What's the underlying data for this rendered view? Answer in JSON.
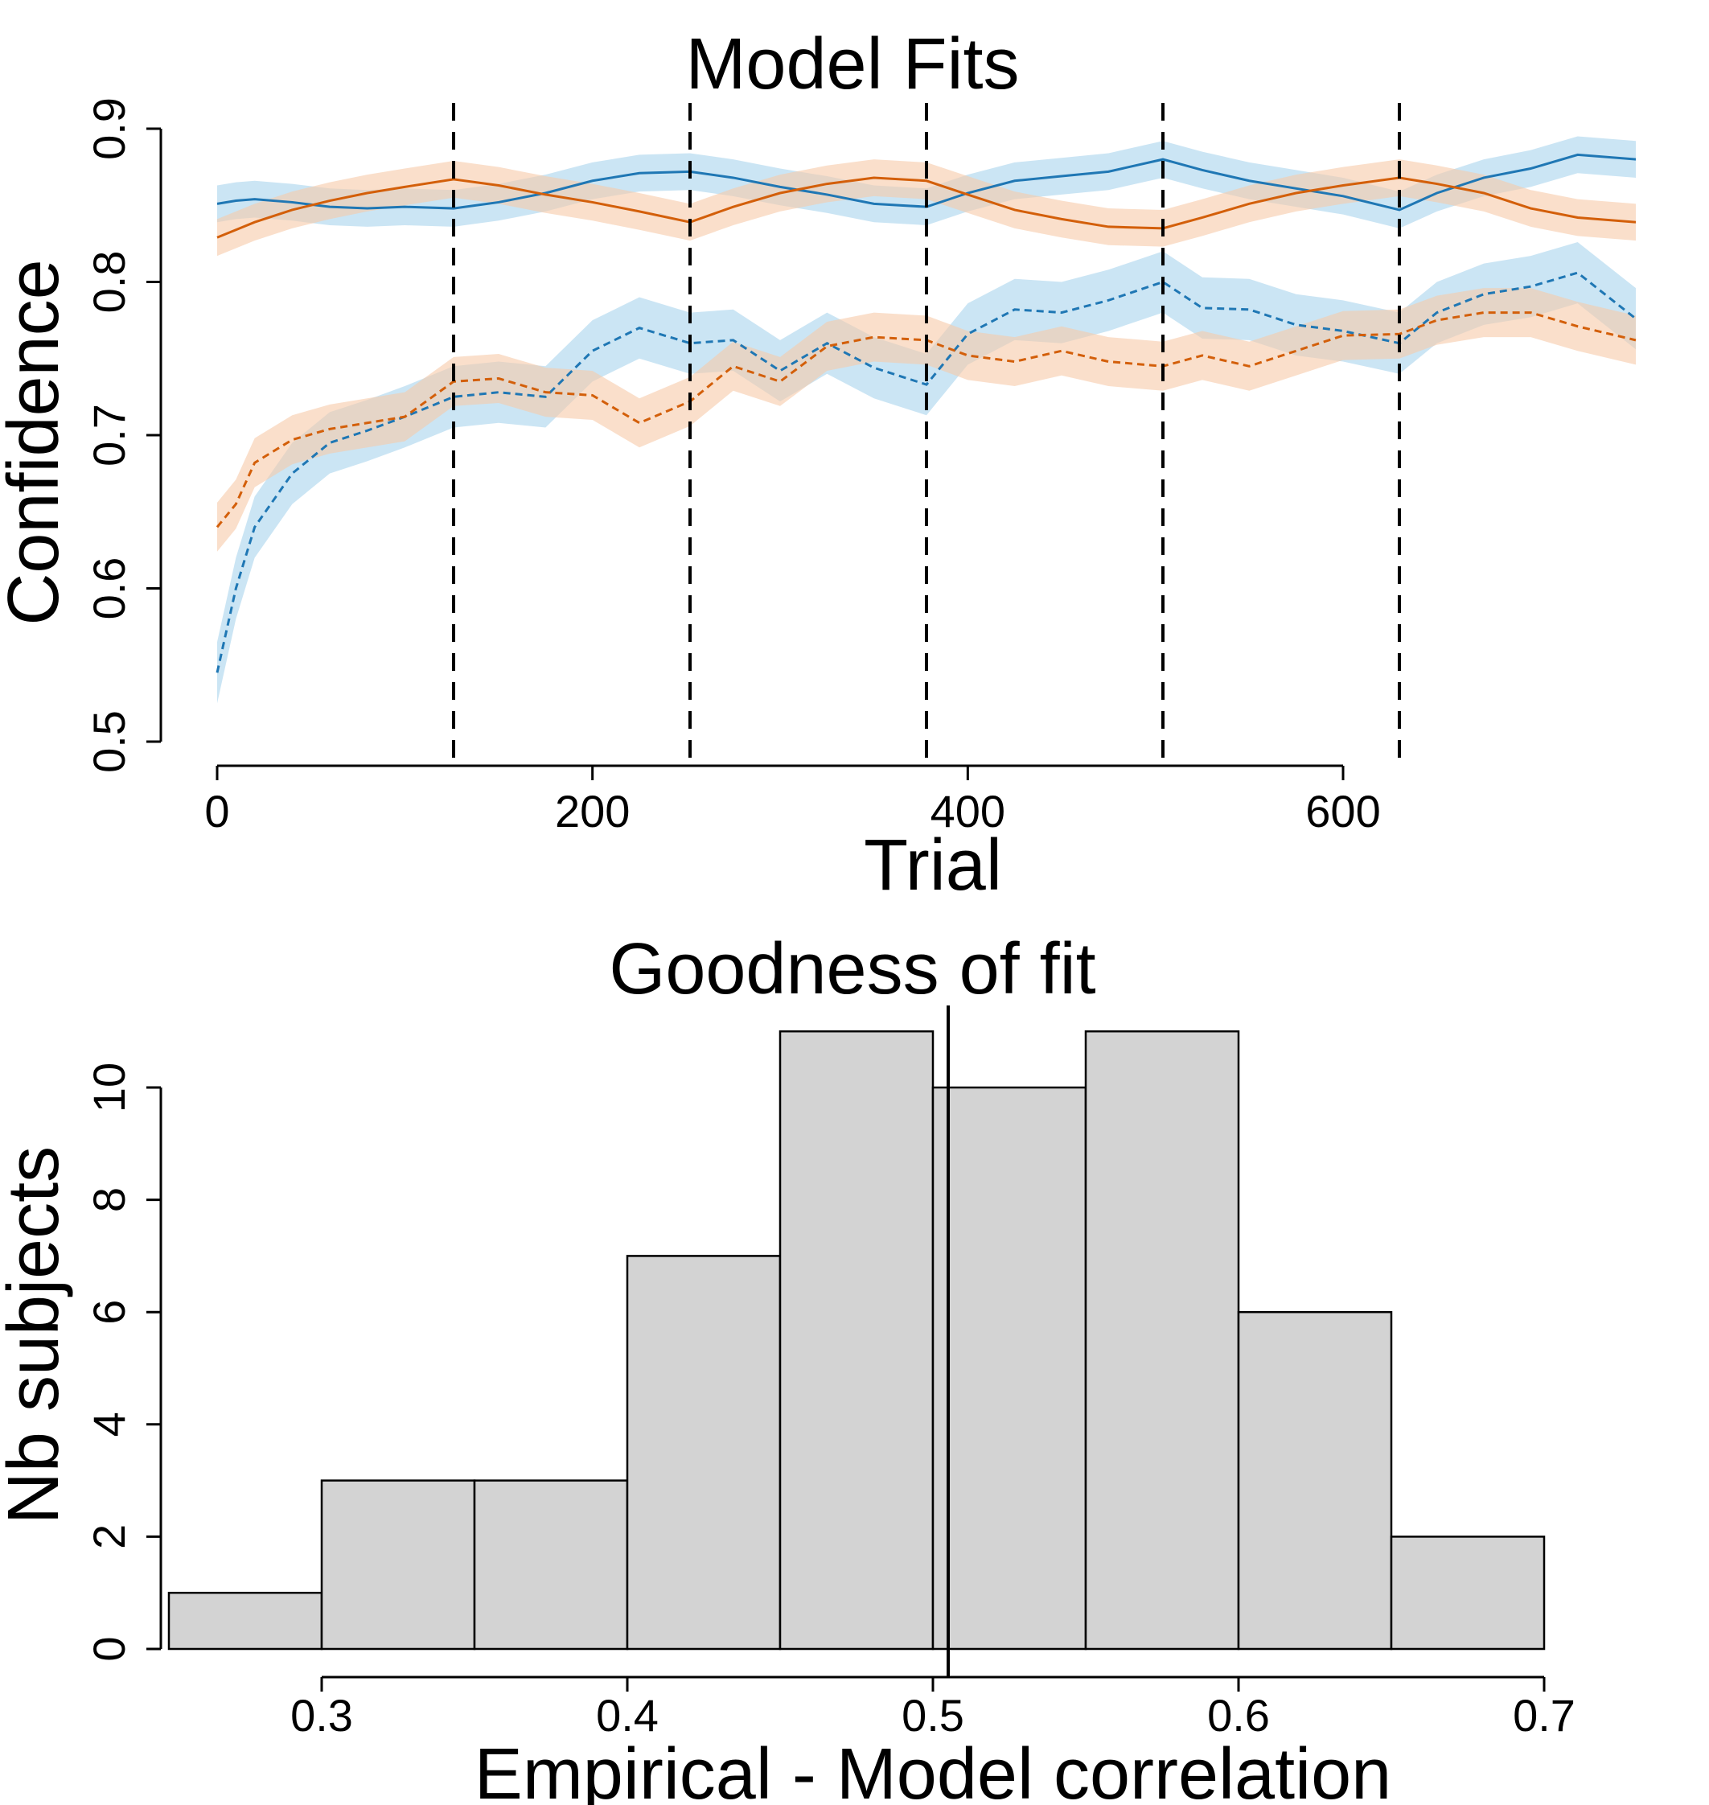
{
  "chart_data": [
    {
      "type": "line",
      "title": "Model Fits",
      "xlabel": "Trial",
      "ylabel": "Confidence",
      "xlim": [
        0,
        756
      ],
      "ylim": [
        0.5,
        0.9
      ],
      "xticks": [
        0,
        200,
        400,
        600
      ],
      "xtick_labels": [
        "0",
        "200",
        "400",
        "600"
      ],
      "yticks": [
        0.5,
        0.6,
        0.7,
        0.8,
        0.9
      ],
      "ytick_labels": [
        "0.5",
        "0.6",
        "0.7",
        "0.8",
        "0.9"
      ],
      "vlines": [
        126,
        252,
        378,
        504,
        630
      ],
      "grid": false,
      "legend": "none",
      "x": [
        0,
        10,
        20,
        40,
        60,
        80,
        100,
        126,
        150,
        175,
        200,
        225,
        252,
        275,
        300,
        325,
        350,
        378,
        400,
        425,
        450,
        475,
        504,
        525,
        550,
        575,
        600,
        630,
        650,
        675,
        700,
        725,
        756
      ],
      "series": [
        {
          "color": "#1f77b4",
          "style": "solid",
          "band": 0.012,
          "values": [
            0.851,
            0.853,
            0.854,
            0.852,
            0.849,
            0.848,
            0.849,
            0.848,
            0.852,
            0.858,
            0.866,
            0.871,
            0.872,
            0.868,
            0.862,
            0.857,
            0.851,
            0.849,
            0.858,
            0.866,
            0.869,
            0.872,
            0.88,
            0.873,
            0.866,
            0.861,
            0.856,
            0.847,
            0.858,
            0.868,
            0.874,
            0.883,
            0.88
          ]
        },
        {
          "color": "#d35f0a",
          "style": "solid",
          "band": 0.012,
          "values": [
            0.829,
            0.834,
            0.839,
            0.847,
            0.853,
            0.858,
            0.862,
            0.867,
            0.863,
            0.857,
            0.852,
            0.846,
            0.839,
            0.849,
            0.858,
            0.864,
            0.868,
            0.866,
            0.857,
            0.847,
            0.841,
            0.836,
            0.835,
            0.842,
            0.851,
            0.858,
            0.863,
            0.868,
            0.864,
            0.858,
            0.848,
            0.842,
            0.839
          ]
        },
        {
          "color": "#1f77b4",
          "style": "dashed",
          "band": 0.02,
          "values": [
            0.545,
            0.6,
            0.64,
            0.675,
            0.695,
            0.703,
            0.712,
            0.725,
            0.728,
            0.725,
            0.755,
            0.77,
            0.76,
            0.762,
            0.742,
            0.76,
            0.744,
            0.733,
            0.766,
            0.782,
            0.78,
            0.788,
            0.8,
            0.783,
            0.782,
            0.772,
            0.768,
            0.76,
            0.78,
            0.792,
            0.797,
            0.806,
            0.776
          ]
        },
        {
          "color": "#d35f0a",
          "style": "dashed",
          "band": 0.016,
          "values": [
            0.64,
            0.655,
            0.682,
            0.697,
            0.704,
            0.708,
            0.712,
            0.735,
            0.737,
            0.728,
            0.726,
            0.708,
            0.722,
            0.745,
            0.735,
            0.758,
            0.764,
            0.762,
            0.752,
            0.748,
            0.755,
            0.748,
            0.745,
            0.752,
            0.745,
            0.755,
            0.765,
            0.766,
            0.775,
            0.78,
            0.78,
            0.771,
            0.762
          ]
        }
      ]
    },
    {
      "type": "bar",
      "title": "Goodness of fit",
      "xlabel": "Empirical - Model correlation",
      "ylabel": "Nb subjects",
      "bin_edges": [
        0.25,
        0.3,
        0.35,
        0.4,
        0.45,
        0.5,
        0.55,
        0.6,
        0.65,
        0.7
      ],
      "values": [
        1,
        3,
        3,
        7,
        11,
        10,
        11,
        6,
        2
      ],
      "xlim": [
        0.25,
        0.7
      ],
      "ylim": [
        0,
        11
      ],
      "xticks": [
        0.3,
        0.4,
        0.5,
        0.6,
        0.7
      ],
      "xtick_labels": [
        "0.3",
        "0.4",
        "0.5",
        "0.6",
        "0.7"
      ],
      "yticks": [
        0,
        2,
        4,
        6,
        8,
        10
      ],
      "ytick_labels": [
        "0",
        "2",
        "4",
        "6",
        "8",
        "10"
      ],
      "vline": 0.505,
      "bar_color": "#d3d3d3",
      "grid": false,
      "legend": "none"
    }
  ]
}
